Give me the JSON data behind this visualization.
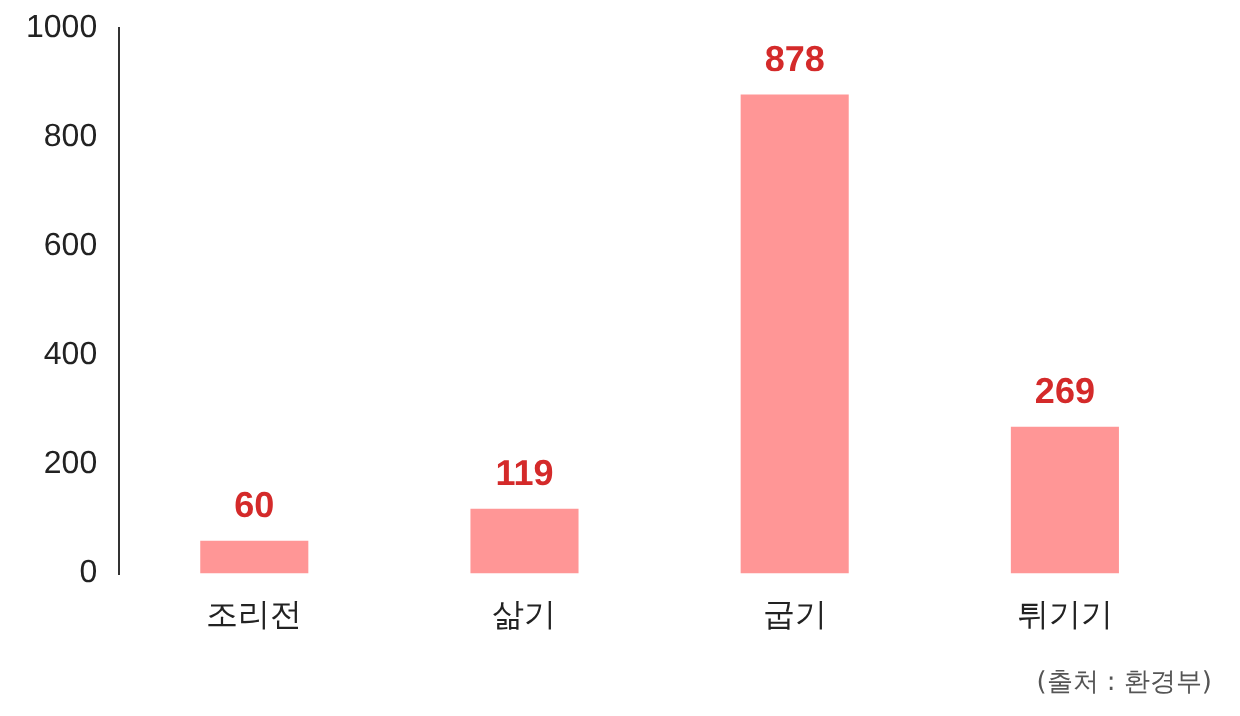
{
  "chart_data": {
    "type": "bar",
    "categories": [
      "조리전",
      "삶기",
      "굽기",
      "튀기기"
    ],
    "values": [
      60,
      119,
      878,
      269
    ],
    "color": "#ff9696",
    "ylim": [
      0,
      1000
    ],
    "yticks": [
      0,
      200,
      400,
      600,
      800,
      1000
    ],
    "grid": false,
    "legend": false,
    "data_labels": true,
    "annotations": [
      "(출처 : 환경부)"
    ]
  }
}
